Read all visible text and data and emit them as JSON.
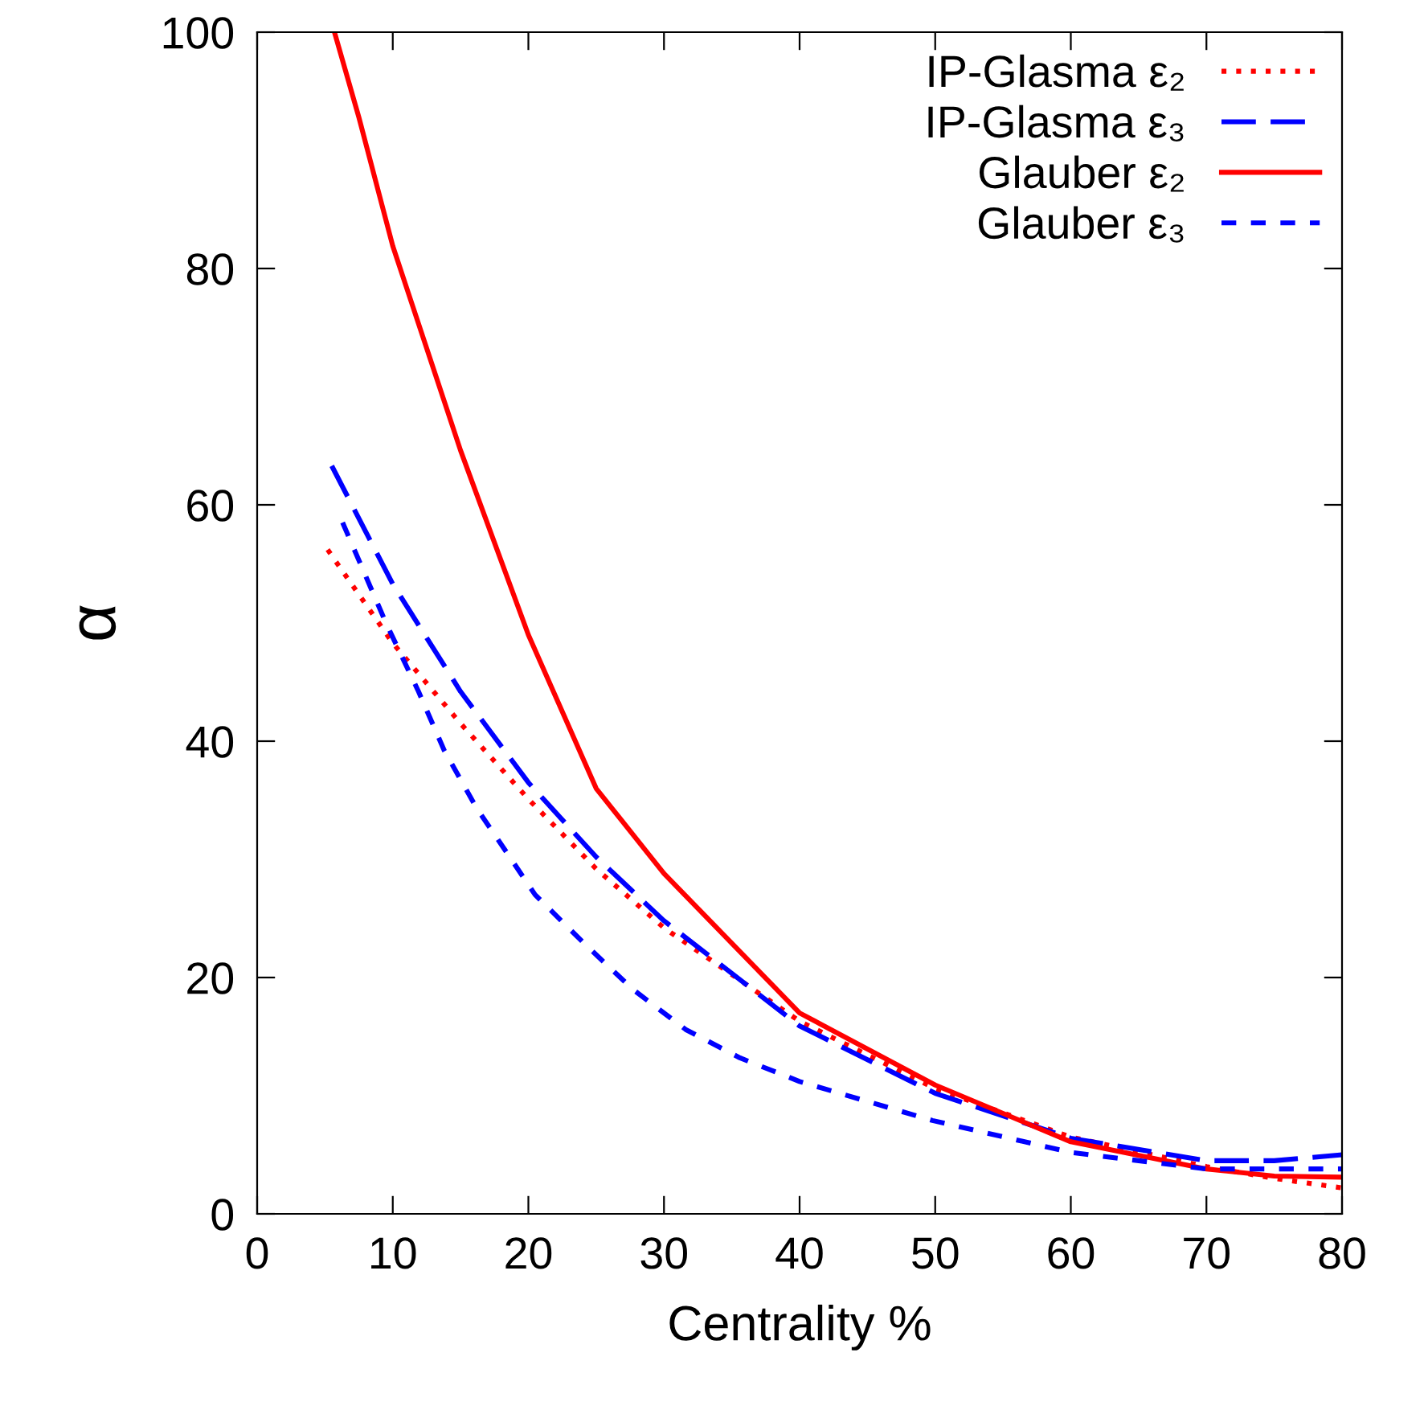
{
  "chart_data": {
    "type": "line",
    "xlabel": "Centrality %",
    "ylabel": "α",
    "xlim": [
      0,
      80
    ],
    "ylim": [
      0,
      100
    ],
    "xticks": [
      0,
      10,
      20,
      30,
      40,
      50,
      60,
      70,
      80
    ],
    "yticks": [
      0,
      20,
      40,
      60,
      80,
      100
    ],
    "grid": false,
    "legend": "top right",
    "marker": "none",
    "series": [
      {
        "name": "IP-Glasma ε₂",
        "color": "#ff0000",
        "line_style": "dotted",
        "x": [
          5.2,
          10,
          15,
          20,
          25,
          30,
          40,
          50,
          60,
          70,
          75,
          80
        ],
        "values": [
          56.2,
          48.3,
          41.5,
          35.1,
          29.2,
          24.2,
          16.3,
          10.6,
          6.5,
          4.0,
          3.0,
          2.2
        ]
      },
      {
        "name": "IP-Glasma ε₃",
        "color": "#0000ff",
        "line_style": "dashed",
        "x": [
          5.5,
          10,
          15,
          20,
          25,
          30,
          40,
          50,
          60,
          70,
          75,
          80
        ],
        "values": [
          63.3,
          53.3,
          44.2,
          36.5,
          30.2,
          24.8,
          15.9,
          10.2,
          6.4,
          4.5,
          4.5,
          5.0
        ]
      },
      {
        "name": "Glauber ε₂",
        "color": "#ff0000",
        "line_style": "solid",
        "x": [
          5.7,
          7.5,
          10,
          15,
          20,
          25,
          30,
          40,
          50,
          60,
          70,
          75,
          80
        ],
        "values": [
          100,
          92.8,
          81.9,
          64.6,
          49,
          36,
          28.8,
          17.0,
          10.9,
          6.1,
          3.8,
          3.2,
          3.1
        ]
      },
      {
        "name": "Glauber ε₃",
        "color": "#0000ff",
        "line_style": "dashed",
        "x": [
          6.3,
          9.5,
          11.9,
          13.8,
          16.2,
          17.8,
          20.5,
          24.1,
          27.7,
          31.6,
          35.6,
          40,
          49.8,
          60,
          70,
          80
        ],
        "values": [
          58.5,
          50,
          44.2,
          39.2,
          34.3,
          31.6,
          27,
          22.9,
          19.0,
          15.6,
          13.2,
          11.2,
          7.9,
          5.2,
          3.8,
          3.8
        ]
      }
    ]
  }
}
